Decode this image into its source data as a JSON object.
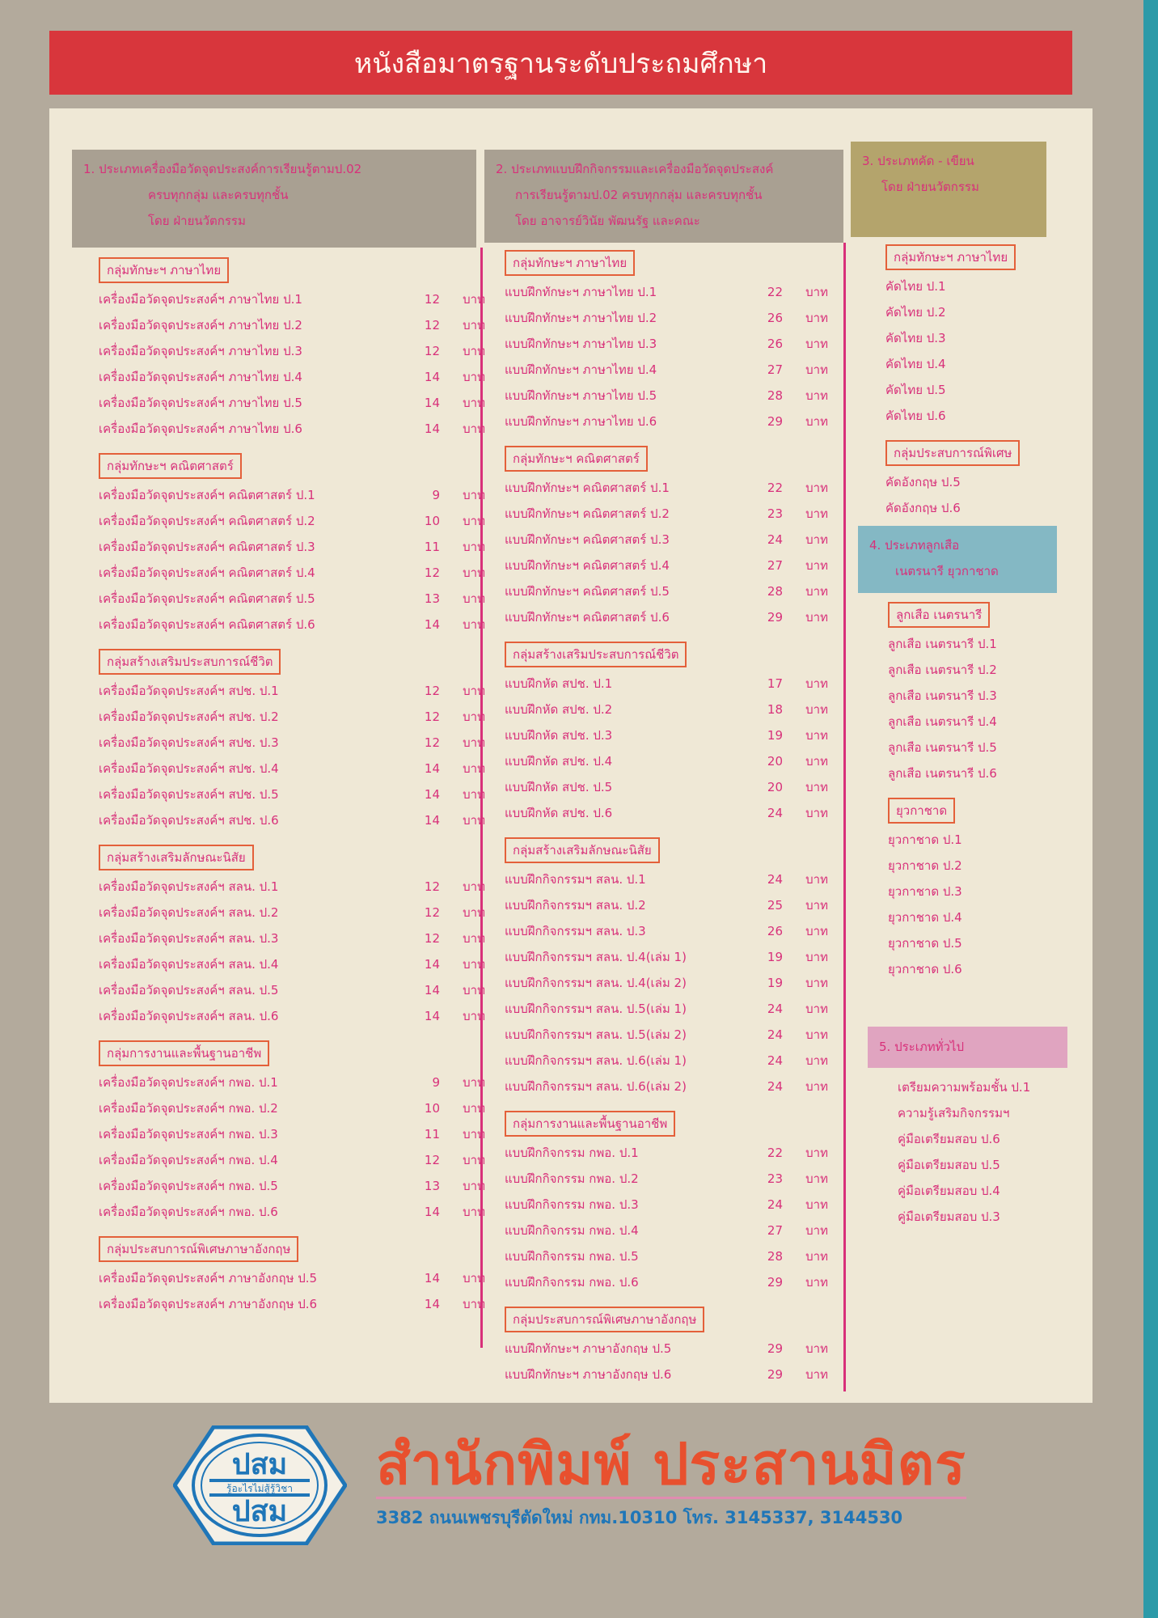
{
  "banner": {
    "title": "หนังสือมาตรฐานระดับประถมศึกษา"
  },
  "headers": {
    "h1": [
      "1. ประเภทเครื่องมือวัดจุดประสงค์การเรียนรู้ตามป.02",
      "ครบทุกกลุ่ม และครบทุกชั้น",
      "โดย ฝ่ายนวัตกรรม"
    ],
    "h2": [
      "2. ประเภทแบบฝึกกิจกรรมและเครื่องมือวัดจุดประสงค์",
      "การเรียนรู้ตามป.02 ครบทุกกลุ่ม และครบทุกชั้น",
      "โดย อาจารย์วินัย พัฒนรัฐ และคณะ"
    ],
    "h3": [
      "3. ประเภทคัด - เขียน",
      "โดย ฝ่ายนวัตกรรม"
    ],
    "h4": [
      "4. ประเภทลูกเสือ",
      "เนตรนารี ยุวกาชาด"
    ],
    "h5": [
      "5. ประเภททั่วไป"
    ]
  },
  "currency": "บาท",
  "col1": [
    {
      "title": "กลุ่มทักษะฯ ภาษาไทย",
      "items": [
        [
          "เครื่องมือวัดจุดประสงค์ฯ ภาษาไทย ป.1",
          "12"
        ],
        [
          "เครื่องมือวัดจุดประสงค์ฯ ภาษาไทย ป.2",
          "12"
        ],
        [
          "เครื่องมือวัดจุดประสงค์ฯ ภาษาไทย ป.3",
          "12"
        ],
        [
          "เครื่องมือวัดจุดประสงค์ฯ ภาษาไทย ป.4",
          "14"
        ],
        [
          "เครื่องมือวัดจุดประสงค์ฯ ภาษาไทย ป.5",
          "14"
        ],
        [
          "เครื่องมือวัดจุดประสงค์ฯ ภาษาไทย ป.6",
          "14"
        ]
      ]
    },
    {
      "title": "กลุ่มทักษะฯ คณิตศาสตร์",
      "items": [
        [
          "เครื่องมือวัดจุดประสงค์ฯ คณิตศาสตร์ ป.1",
          "9"
        ],
        [
          "เครื่องมือวัดจุดประสงค์ฯ คณิตศาสตร์ ป.2",
          "10"
        ],
        [
          "เครื่องมือวัดจุดประสงค์ฯ คณิตศาสตร์ ป.3",
          "11"
        ],
        [
          "เครื่องมือวัดจุดประสงค์ฯ คณิตศาสตร์ ป.4",
          "12"
        ],
        [
          "เครื่องมือวัดจุดประสงค์ฯ คณิตศาสตร์ ป.5",
          "13"
        ],
        [
          "เครื่องมือวัดจุดประสงค์ฯ คณิตศาสตร์ ป.6",
          "14"
        ]
      ]
    },
    {
      "title": "กลุ่มสร้างเสริมประสบการณ์ชีวิต",
      "items": [
        [
          "เครื่องมือวัดจุดประสงค์ฯ สปช. ป.1",
          "12"
        ],
        [
          "เครื่องมือวัดจุดประสงค์ฯ สปช. ป.2",
          "12"
        ],
        [
          "เครื่องมือวัดจุดประสงค์ฯ สปช. ป.3",
          "12"
        ],
        [
          "เครื่องมือวัดจุดประสงค์ฯ สปช. ป.4",
          "14"
        ],
        [
          "เครื่องมือวัดจุดประสงค์ฯ สปช. ป.5",
          "14"
        ],
        [
          "เครื่องมือวัดจุดประสงค์ฯ สปช. ป.6",
          "14"
        ]
      ]
    },
    {
      "title": "กลุ่มสร้างเสริมลักษณะนิสัย",
      "items": [
        [
          "เครื่องมือวัดจุดประสงค์ฯ สลน. ป.1",
          "12"
        ],
        [
          "เครื่องมือวัดจุดประสงค์ฯ สลน. ป.2",
          "12"
        ],
        [
          "เครื่องมือวัดจุดประสงค์ฯ สลน. ป.3",
          "12"
        ],
        [
          "เครื่องมือวัดจุดประสงค์ฯ สลน. ป.4",
          "14"
        ],
        [
          "เครื่องมือวัดจุดประสงค์ฯ สลน. ป.5",
          "14"
        ],
        [
          "เครื่องมือวัดจุดประสงค์ฯ สลน. ป.6",
          "14"
        ]
      ]
    },
    {
      "title": "กลุ่มการงานและพื้นฐานอาชีพ",
      "items": [
        [
          "เครื่องมือวัดจุดประสงค์ฯ กพอ. ป.1",
          "9"
        ],
        [
          "เครื่องมือวัดจุดประสงค์ฯ กพอ. ป.2",
          "10"
        ],
        [
          "เครื่องมือวัดจุดประสงค์ฯ กพอ. ป.3",
          "11"
        ],
        [
          "เครื่องมือวัดจุดประสงค์ฯ กพอ. ป.4",
          "12"
        ],
        [
          "เครื่องมือวัดจุดประสงค์ฯ กพอ. ป.5",
          "13"
        ],
        [
          "เครื่องมือวัดจุดประสงค์ฯ กพอ. ป.6",
          "14"
        ]
      ]
    },
    {
      "title": "กลุ่มประสบการณ์พิเศษภาษาอังกฤษ",
      "items": [
        [
          "เครื่องมือวัดจุดประสงค์ฯ ภาษาอังกฤษ ป.5",
          "14"
        ],
        [
          "เครื่องมือวัดจุดประสงค์ฯ ภาษาอังกฤษ ป.6",
          "14"
        ]
      ]
    }
  ],
  "col2": [
    {
      "title": "กลุ่มทักษะฯ ภาษาไทย",
      "items": [
        [
          "แบบฝึกทักษะฯ ภาษาไทย ป.1",
          "22"
        ],
        [
          "แบบฝึกทักษะฯ ภาษาไทย ป.2",
          "26"
        ],
        [
          "แบบฝึกทักษะฯ ภาษาไทย ป.3",
          "26"
        ],
        [
          "แบบฝึกทักษะฯ ภาษาไทย ป.4",
          "27"
        ],
        [
          "แบบฝึกทักษะฯ ภาษาไทย ป.5",
          "28"
        ],
        [
          "แบบฝึกทักษะฯ ภาษาไทย ป.6",
          "29"
        ]
      ]
    },
    {
      "title": "กลุ่มทักษะฯ คณิตศาสตร์",
      "items": [
        [
          "แบบฝึกทักษะฯ คณิตศาสตร์ ป.1",
          "22"
        ],
        [
          "แบบฝึกทักษะฯ คณิตศาสตร์ ป.2",
          "23"
        ],
        [
          "แบบฝึกทักษะฯ คณิตศาสตร์ ป.3",
          "24"
        ],
        [
          "แบบฝึกทักษะฯ คณิตศาสตร์ ป.4",
          "27"
        ],
        [
          "แบบฝึกทักษะฯ คณิตศาสตร์ ป.5",
          "28"
        ],
        [
          "แบบฝึกทักษะฯ คณิตศาสตร์ ป.6",
          "29"
        ]
      ]
    },
    {
      "title": "กลุ่มสร้างเสริมประสบการณ์ชีวิต",
      "items": [
        [
          "แบบฝึกหัด สปช. ป.1",
          "17"
        ],
        [
          "แบบฝึกหัด สปช. ป.2",
          "18"
        ],
        [
          "แบบฝึกหัด สปช. ป.3",
          "19"
        ],
        [
          "แบบฝึกหัด สปช. ป.4",
          "20"
        ],
        [
          "แบบฝึกหัด สปช. ป.5",
          "20"
        ],
        [
          "แบบฝึกหัด สปช. ป.6",
          "24"
        ]
      ]
    },
    {
      "title": "กลุ่มสร้างเสริมลักษณะนิสัย",
      "items": [
        [
          "แบบฝึกกิจกรรมฯ สลน. ป.1",
          "24"
        ],
        [
          "แบบฝึกกิจกรรมฯ สลน. ป.2",
          "25"
        ],
        [
          "แบบฝึกกิจกรรมฯ สลน. ป.3",
          "26"
        ],
        [
          "แบบฝึกกิจกรรมฯ สลน. ป.4(เล่ม 1)",
          "19"
        ],
        [
          "แบบฝึกกิจกรรมฯ สลน. ป.4(เล่ม 2)",
          "19"
        ],
        [
          "แบบฝึกกิจกรรมฯ สลน. ป.5(เล่ม 1)",
          "24"
        ],
        [
          "แบบฝึกกิจกรรมฯ สลน. ป.5(เล่ม 2)",
          "24"
        ],
        [
          "แบบฝึกกิจกรรมฯ สลน. ป.6(เล่ม 1)",
          "24"
        ],
        [
          "แบบฝึกกิจกรรมฯ สลน. ป.6(เล่ม 2)",
          "24"
        ]
      ]
    },
    {
      "title": "กลุ่มการงานและพื้นฐานอาชีพ",
      "items": [
        [
          "แบบฝึกกิจกรรม กพอ. ป.1",
          "22"
        ],
        [
          "แบบฝึกกิจกรรม กพอ. ป.2",
          "23"
        ],
        [
          "แบบฝึกกิจกรรม กพอ. ป.3",
          "24"
        ],
        [
          "แบบฝึกกิจกรรม กพอ. ป.4",
          "27"
        ],
        [
          "แบบฝึกกิจกรรม กพอ. ป.5",
          "28"
        ],
        [
          "แบบฝึกกิจกรรม กพอ. ป.6",
          "29"
        ]
      ]
    },
    {
      "title": "กลุ่มประสบการณ์พิเศษภาษาอังกฤษ",
      "items": [
        [
          "แบบฝึกทักษะฯ ภาษาอังกฤษ ป.5",
          "29"
        ],
        [
          "แบบฝึกทักษะฯ ภาษาอังกฤษ ป.6",
          "29"
        ]
      ]
    }
  ],
  "col3a": [
    {
      "title": "กลุ่มทักษะฯ ภาษาไทย",
      "items": [
        [
          "คัดไทย ป.1"
        ],
        [
          "คัดไทย ป.2"
        ],
        [
          "คัดไทย ป.3"
        ],
        [
          "คัดไทย ป.4"
        ],
        [
          "คัดไทย ป.5"
        ],
        [
          "คัดไทย ป.6"
        ]
      ]
    },
    {
      "title": "กลุ่มประสบการณ์พิเศษ",
      "items": [
        [
          "คัดอังกฤษ ป.5"
        ],
        [
          "คัดอังกฤษ ป.6"
        ]
      ]
    }
  ],
  "col3b": [
    {
      "title": "ลูกเสือ เนตรนารี",
      "items": [
        [
          "ลูกเสือ เนตรนารี ป.1"
        ],
        [
          "ลูกเสือ เนตรนารี ป.2"
        ],
        [
          "ลูกเสือ เนตรนารี ป.3"
        ],
        [
          "ลูกเสือ เนตรนารี ป.4"
        ],
        [
          "ลูกเสือ เนตรนารี ป.5"
        ],
        [
          "ลูกเสือ เนตรนารี ป.6"
        ]
      ]
    },
    {
      "title": "ยุวกาชาด",
      "items": [
        [
          "ยุวกาชาด ป.1"
        ],
        [
          "ยุวกาชาด ป.2"
        ],
        [
          "ยุวกาชาด ป.3"
        ],
        [
          "ยุวกาชาด ป.4"
        ],
        [
          "ยุวกาชาด ป.5"
        ],
        [
          "ยุวกาชาด ป.6"
        ]
      ]
    }
  ],
  "col3c": [
    {
      "title": "",
      "items": [
        [
          "เตรียมความพร้อมชั้น ป.1"
        ],
        [
          "ความรู้เสริมกิจกรรมฯ"
        ],
        [
          "คู่มือเตรียมสอบ ป.6"
        ],
        [
          "คู่มือเตรียมสอบ ป.5"
        ],
        [
          "คู่มือเตรียมสอบ ป.4"
        ],
        [
          "คู่มือเตรียมสอบ ป.3"
        ]
      ]
    }
  ],
  "publisher": {
    "name": "สำนักพิมพ์ ประสานมิตร",
    "address": "3382 ถนนเพชรบุรีตัดใหม่ กทม.10310 โทร. 3145337, 3144530",
    "logo_text": [
      "ปสม",
      "รู้อะไรไม่สู้รู้วิชา"
    ]
  },
  "colors": {
    "text": "#d8307a",
    "banner": "#d8363c",
    "publisher": "#e8502e",
    "logo": "#1f76b8"
  }
}
